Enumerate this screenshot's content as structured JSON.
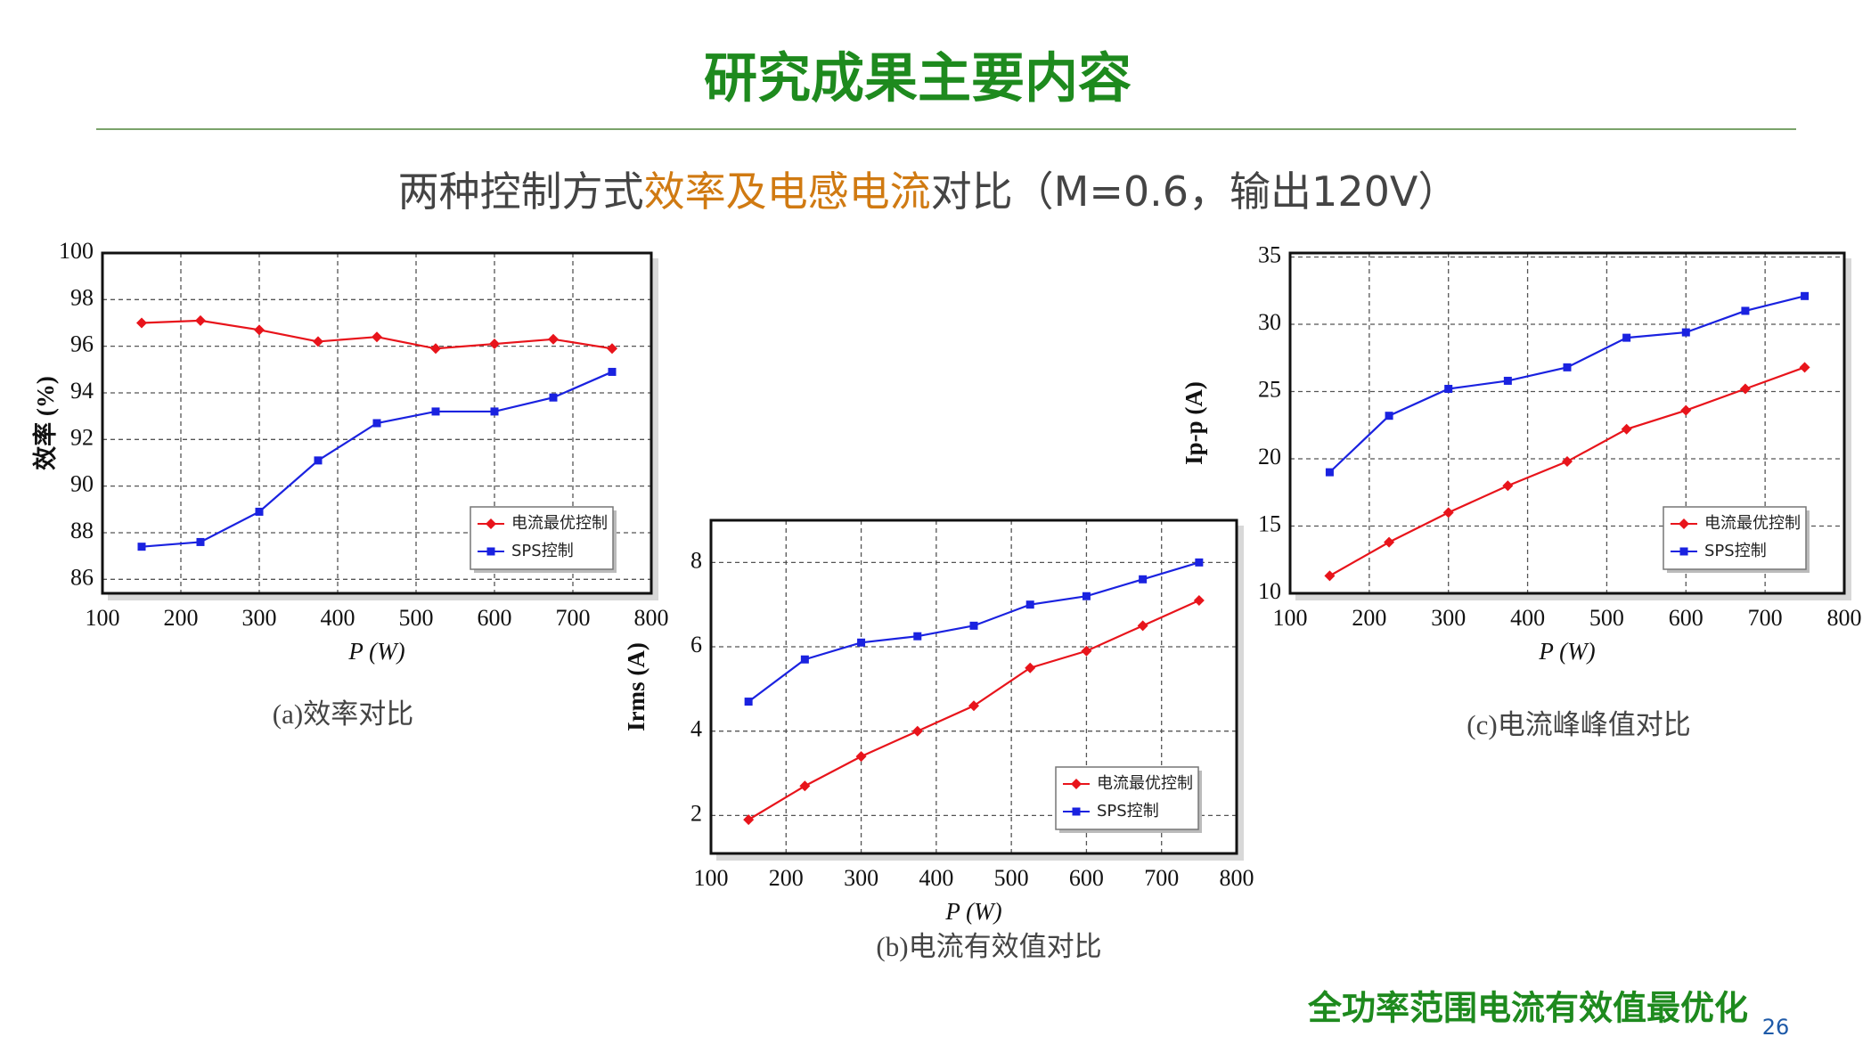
{
  "slide": {
    "title": "研究成果主要内容",
    "subtitle": [
      "两种控制方式",
      "效率及电感电流",
      "对比（M=0.6，输出120V）"
    ],
    "footer": "全功率范围电流有效值最优化",
    "page": 26
  },
  "chart_data": [
    {
      "type": "line",
      "caption": "(a)效率对比",
      "xlabel": "P (W)",
      "ylabel": "效率 (%)",
      "x": [
        150,
        225,
        300,
        375,
        450,
        525,
        600,
        675,
        750
      ],
      "series": [
        {
          "name": "电流最优控制",
          "color": "#e8141b",
          "marker": "diamond",
          "values": [
            97.0,
            97.1,
            96.7,
            96.2,
            96.4,
            95.9,
            96.1,
            96.3,
            95.9
          ]
        },
        {
          "name": "SPS控制",
          "color": "#1a22e0",
          "marker": "square",
          "values": [
            87.4,
            87.6,
            88.9,
            91.1,
            92.7,
            93.2,
            93.2,
            93.8,
            94.9
          ]
        }
      ],
      "xlim": [
        100,
        800
      ],
      "xticks": [
        100,
        200,
        300,
        400,
        500,
        600,
        700,
        800
      ],
      "ylim": [
        85.4,
        100
      ],
      "yticks": [
        86,
        88,
        90,
        92,
        94,
        96,
        98,
        100
      ],
      "grid": true,
      "legend": "lower right"
    },
    {
      "type": "line",
      "caption": "(b)电流有效值对比",
      "xlabel": "P (W)",
      "ylabel": "Irms (A)",
      "x": [
        150,
        225,
        300,
        375,
        450,
        525,
        600,
        675,
        750
      ],
      "series": [
        {
          "name": "电流最优控制",
          "color": "#e8141b",
          "marker": "diamond",
          "values": [
            1.9,
            2.7,
            3.4,
            4.0,
            4.6,
            5.5,
            5.9,
            6.5,
            7.1
          ]
        },
        {
          "name": "SPS控制",
          "color": "#1a22e0",
          "marker": "square",
          "values": [
            4.7,
            5.7,
            6.1,
            6.25,
            6.5,
            7.0,
            7.2,
            7.6,
            8.0
          ]
        }
      ],
      "xlim": [
        100,
        800
      ],
      "xticks": [
        100,
        200,
        300,
        400,
        500,
        600,
        700,
        800
      ],
      "ylim": [
        1.1,
        9
      ],
      "yticks": [
        2,
        4,
        6,
        8
      ],
      "grid": true,
      "legend": "lower right"
    },
    {
      "type": "line",
      "caption": "(c)电流峰峰值对比",
      "xlabel": "P (W)",
      "ylabel": "Ip-p (A)",
      "x": [
        150,
        225,
        300,
        375,
        450,
        525,
        600,
        675,
        750
      ],
      "series": [
        {
          "name": "电流最优控制",
          "color": "#e8141b",
          "marker": "diamond",
          "values": [
            11.3,
            13.8,
            16.0,
            18.0,
            19.8,
            22.2,
            23.6,
            25.2,
            26.8
          ]
        },
        {
          "name": "SPS控制",
          "color": "#1a22e0",
          "marker": "square",
          "values": [
            19.0,
            23.2,
            25.2,
            25.8,
            26.8,
            29.0,
            29.4,
            31.0,
            32.1
          ]
        }
      ],
      "xlim": [
        100,
        800
      ],
      "xticks": [
        100,
        200,
        300,
        400,
        500,
        600,
        700,
        800
      ],
      "ylim": [
        10,
        35.3
      ],
      "yticks": [
        10,
        15,
        20,
        25,
        30,
        35
      ],
      "grid": true,
      "legend": "lower right"
    }
  ]
}
